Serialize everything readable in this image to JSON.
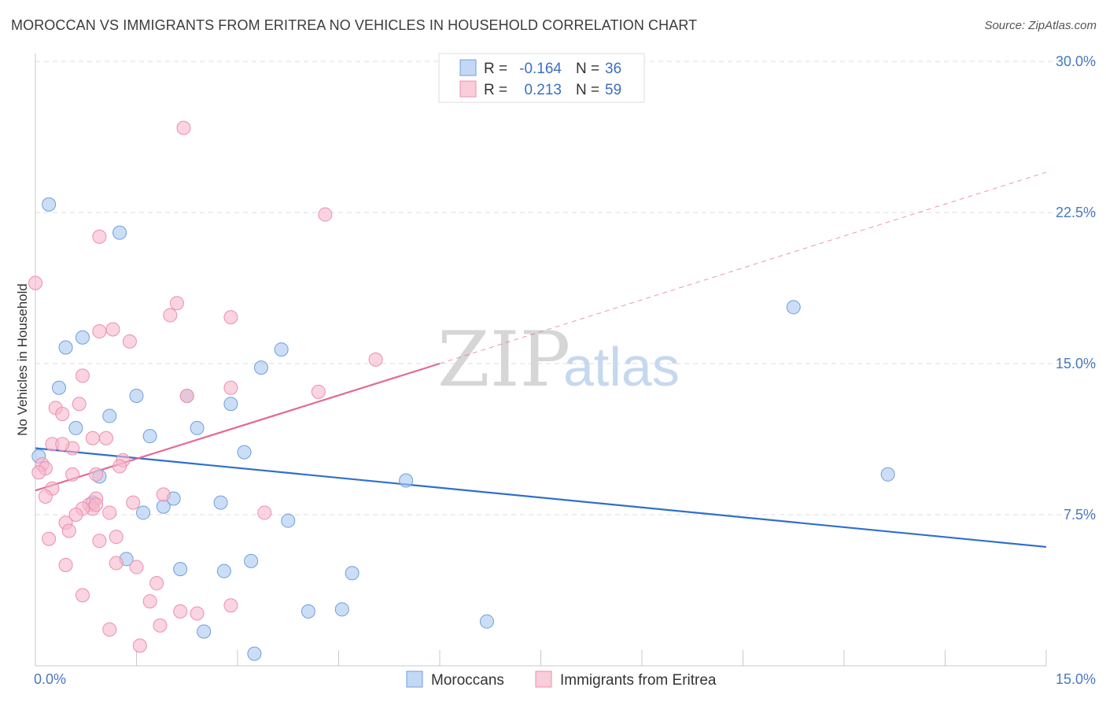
{
  "title": "MOROCCAN VS IMMIGRANTS FROM ERITREA NO VEHICLES IN HOUSEHOLD CORRELATION CHART",
  "source": "Source: ZipAtlas.com",
  "watermark": {
    "zip": "ZIP",
    "atlas": "atlas"
  },
  "chart_data": {
    "type": "scatter",
    "xlabel": "",
    "ylabel": "No Vehicles in Household",
    "xlim": [
      0,
      15
    ],
    "ylim": [
      0,
      30
    ],
    "x_tick_labels": [
      {
        "value": 0,
        "label": "0.0%"
      },
      {
        "value": 15,
        "label": "15.0%"
      }
    ],
    "y_tick_labels": [
      {
        "value": 7.5,
        "label": "7.5%"
      },
      {
        "value": 15,
        "label": "15.0%"
      },
      {
        "value": 22.5,
        "label": "22.5%"
      },
      {
        "value": 30,
        "label": "30.0%"
      }
    ],
    "grid": true,
    "legend_top": [
      {
        "r_label": "R =",
        "r_value": "-0.164",
        "n_label": "N =",
        "n_value": "36",
        "color": "#a9c8f0"
      },
      {
        "r_label": "R =",
        "r_value": " 0.213",
        "n_label": "N =",
        "n_value": "59",
        "color": "#f6b8cb"
      }
    ],
    "series": [
      {
        "name": "Moroccans",
        "color": "#a9c8f0",
        "stroke": "#6f9fdc",
        "trend_color": "#2f6fcd",
        "trend": {
          "x0": 0,
          "y0": 10.8,
          "x1": 15,
          "y1": 5.9
        },
        "points": [
          [
            0.2,
            22.9
          ],
          [
            1.25,
            21.5
          ],
          [
            0.45,
            15.8
          ],
          [
            0.7,
            16.3
          ],
          [
            0.35,
            13.8
          ],
          [
            1.5,
            13.4
          ],
          [
            2.25,
            13.4
          ],
          [
            2.9,
            13.0
          ],
          [
            1.1,
            12.4
          ],
          [
            0.6,
            11.8
          ],
          [
            2.4,
            11.8
          ],
          [
            1.7,
            11.4
          ],
          [
            3.1,
            10.6
          ],
          [
            0.05,
            10.4
          ],
          [
            0.95,
            9.4
          ],
          [
            0.85,
            8.1
          ],
          [
            1.9,
            7.9
          ],
          [
            2.05,
            8.3
          ],
          [
            2.75,
            8.1
          ],
          [
            1.6,
            7.6
          ],
          [
            3.35,
            14.8
          ],
          [
            3.65,
            15.7
          ],
          [
            3.75,
            7.2
          ],
          [
            1.35,
            5.3
          ],
          [
            2.15,
            4.8
          ],
          [
            2.8,
            4.7
          ],
          [
            3.2,
            5.2
          ],
          [
            4.7,
            4.6
          ],
          [
            4.05,
            2.7
          ],
          [
            4.55,
            2.8
          ],
          [
            2.5,
            1.7
          ],
          [
            3.25,
            0.6
          ],
          [
            5.5,
            9.2
          ],
          [
            11.25,
            17.8
          ],
          [
            12.65,
            9.5
          ],
          [
            6.7,
            2.2
          ]
        ]
      },
      {
        "name": "Immigrants from Eritrea",
        "color": "#f6b8cb",
        "stroke": "#ec8fad",
        "trend_color": "#e46a93",
        "trend": {
          "x0": 0,
          "y0": 8.7,
          "x1": 6.0,
          "y1": 15.0
        },
        "trend_dashed": {
          "x0": 6.0,
          "y0": 15.0,
          "x1": 15,
          "y1": 24.5
        },
        "points": [
          [
            0.0,
            19.0
          ],
          [
            2.2,
            26.7
          ],
          [
            4.3,
            22.4
          ],
          [
            0.95,
            21.3
          ],
          [
            2.1,
            18.0
          ],
          [
            2.0,
            17.4
          ],
          [
            2.9,
            17.3
          ],
          [
            1.15,
            16.7
          ],
          [
            0.95,
            16.6
          ],
          [
            1.4,
            16.1
          ],
          [
            5.05,
            15.2
          ],
          [
            0.7,
            14.4
          ],
          [
            2.9,
            13.8
          ],
          [
            4.2,
            13.6
          ],
          [
            2.25,
            13.4
          ],
          [
            0.65,
            13.0
          ],
          [
            0.3,
            12.8
          ],
          [
            0.4,
            12.5
          ],
          [
            0.85,
            11.3
          ],
          [
            1.05,
            11.3
          ],
          [
            0.25,
            11.0
          ],
          [
            0.55,
            10.8
          ],
          [
            0.4,
            11.0
          ],
          [
            1.3,
            10.2
          ],
          [
            1.25,
            9.9
          ],
          [
            0.1,
            10.0
          ],
          [
            0.15,
            9.8
          ],
          [
            0.05,
            9.6
          ],
          [
            0.9,
            9.5
          ],
          [
            0.55,
            9.5
          ],
          [
            0.25,
            8.8
          ],
          [
            0.15,
            8.4
          ],
          [
            1.9,
            8.5
          ],
          [
            0.9,
            8.3
          ],
          [
            0.8,
            8.0
          ],
          [
            0.85,
            7.8
          ],
          [
            0.7,
            7.8
          ],
          [
            1.45,
            8.1
          ],
          [
            0.6,
            7.5
          ],
          [
            1.1,
            7.6
          ],
          [
            3.4,
            7.6
          ],
          [
            0.45,
            7.1
          ],
          [
            0.5,
            6.7
          ],
          [
            0.2,
            6.3
          ],
          [
            0.95,
            6.2
          ],
          [
            1.2,
            6.4
          ],
          [
            0.45,
            5.0
          ],
          [
            1.2,
            5.1
          ],
          [
            1.5,
            4.9
          ],
          [
            1.8,
            4.1
          ],
          [
            0.7,
            3.5
          ],
          [
            1.7,
            3.2
          ],
          [
            2.15,
            2.7
          ],
          [
            2.4,
            2.6
          ],
          [
            2.9,
            3.0
          ],
          [
            1.85,
            2.0
          ],
          [
            1.1,
            1.8
          ],
          [
            1.55,
            1.0
          ],
          [
            0.9,
            8.0
          ]
        ]
      }
    ]
  }
}
